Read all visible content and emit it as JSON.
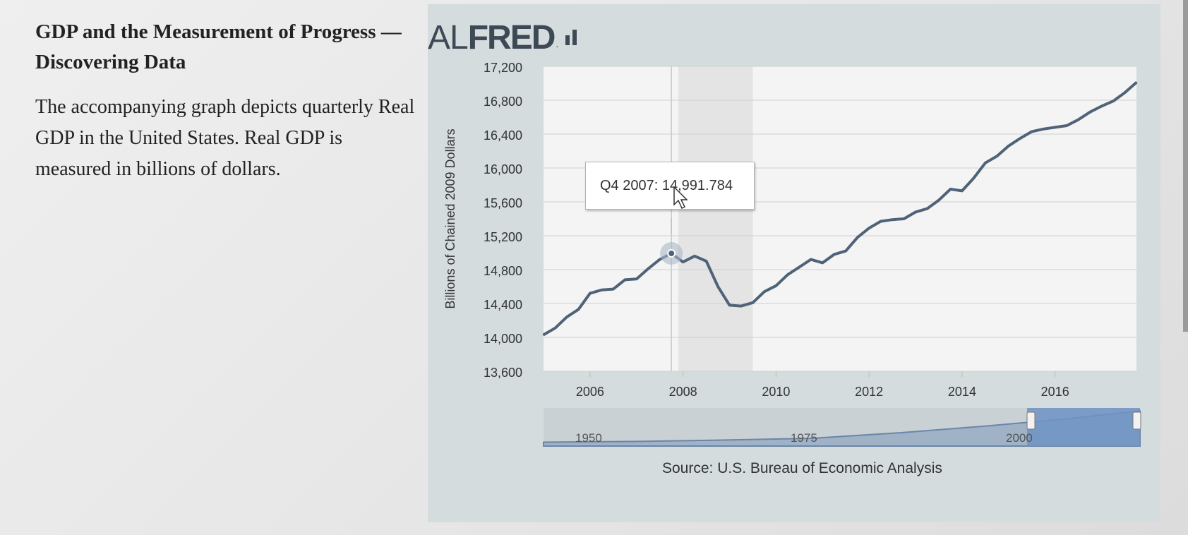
{
  "article": {
    "title": "GDP and the Measurement of Progress — Discovering Data",
    "description": "The accompanying graph depicts quarterly Real GDP in the United States. Real GDP is measured in billions of dollars."
  },
  "logo": {
    "prefix": "AL",
    "name": "FRED",
    "dot": "."
  },
  "tooltip": {
    "text": "Q4 2007: 14,991.784"
  },
  "source": "Source: U.S. Bureau of Economic Analysis",
  "colors": {
    "line": "#4f6378",
    "panel": "#d5dcde",
    "plot_bg": "#f4f4f4",
    "recession": "#e4e4e4",
    "navigator_fill": "#6f93c4"
  },
  "navigator": {
    "labels": [
      "1950",
      "1975",
      "2000"
    ]
  },
  "chart_data": {
    "type": "line",
    "title": "",
    "xlabel": "",
    "ylabel": "Billions of Chained 2009 Dollars",
    "ylim": [
      13600,
      17200
    ],
    "yticks": [
      13600,
      14000,
      14400,
      14800,
      15200,
      15600,
      16000,
      16400,
      16800,
      17200
    ],
    "ytick_labels": [
      "13,600",
      "14,000",
      "14,400",
      "14,800",
      "15,200",
      "15,600",
      "16,000",
      "16,400",
      "16,800",
      "17,200"
    ],
    "xlim": [
      2005.0,
      2017.75
    ],
    "xticks": [
      2006,
      2008,
      2010,
      2012,
      2014,
      2016
    ],
    "xtick_labels": [
      "2006",
      "2008",
      "2010",
      "2012",
      "2014",
      "2016"
    ],
    "grid": true,
    "recession": [
      2007.9,
      2009.5
    ],
    "highlight": {
      "x": 2007.75,
      "y": 14991.784,
      "label": "Q4 2007"
    },
    "series": [
      {
        "x": [
          2005.0,
          2005.25,
          2005.5,
          2005.75,
          2006.0,
          2006.25,
          2006.5,
          2006.75,
          2007.0,
          2007.25,
          2007.5,
          2007.75,
          2008.0,
          2008.25,
          2008.5,
          2008.75,
          2009.0,
          2009.25,
          2009.5,
          2009.75,
          2010.0,
          2010.25,
          2010.5,
          2010.75,
          2011.0,
          2011.25,
          2011.5,
          2011.75,
          2012.0,
          2012.25,
          2012.5,
          2012.75,
          2013.0,
          2013.25,
          2013.5,
          2013.75,
          2014.0,
          2014.25,
          2014.5,
          2014.75,
          2015.0,
          2015.25,
          2015.5,
          2015.75,
          2016.0,
          2016.25,
          2016.5,
          2016.75,
          2017.0,
          2017.25,
          2017.5,
          2017.75
        ],
        "values": [
          14030,
          14110,
          14240,
          14330,
          14520,
          14560,
          14570,
          14680,
          14690,
          14810,
          14920,
          14991.784,
          14890,
          14960,
          14900,
          14600,
          14380,
          14370,
          14410,
          14540,
          14610,
          14740,
          14830,
          14920,
          14880,
          14980,
          15020,
          15180,
          15290,
          15370,
          15390,
          15400,
          15480,
          15520,
          15620,
          15750,
          15730,
          15880,
          16060,
          16140,
          16260,
          16350,
          16430,
          16460,
          16480,
          16500,
          16570,
          16660,
          16730,
          16790,
          16890,
          17010
        ]
      }
    ]
  }
}
